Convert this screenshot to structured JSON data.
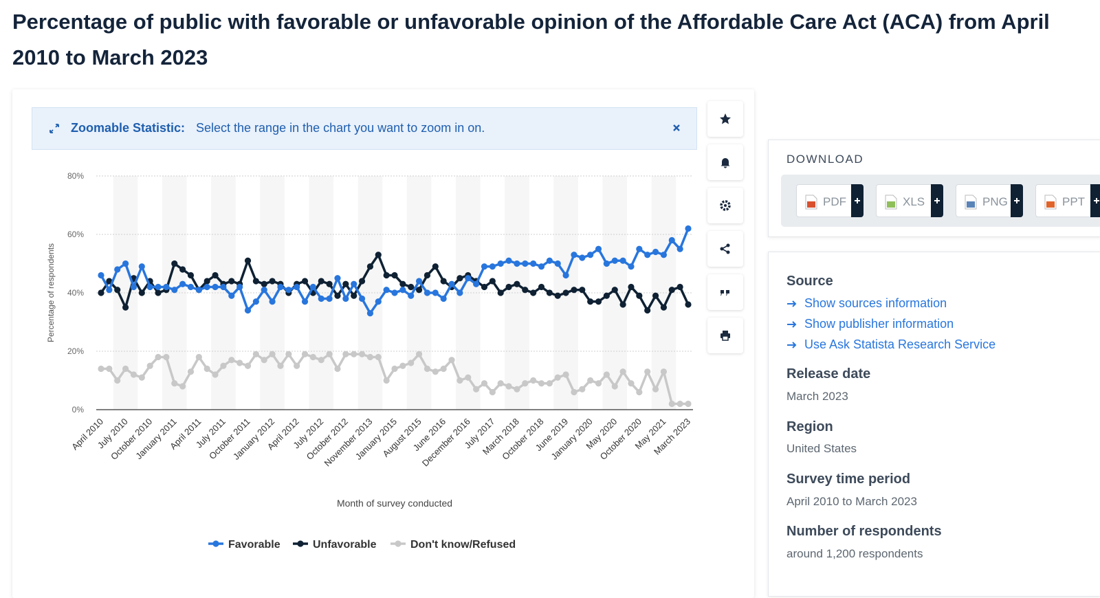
{
  "title": "Percentage of public with favorable or unfavorable opinion of the Affordable Care Act (ACA) from April 2010 to March 2023",
  "zoom_banner": {
    "label": "Zoomable Statistic:",
    "text": "Select the range in the chart you want to zoom in on."
  },
  "chart_data": {
    "type": "line",
    "y_axis_label": "Percentage of respondents",
    "x_axis_label": "Month of survey conducted",
    "categories": [
      "April 2010",
      null,
      null,
      "July 2010",
      null,
      null,
      "October 2010",
      null,
      null,
      "January 2011",
      null,
      null,
      "April 2011",
      null,
      null,
      "July 2011",
      null,
      null,
      "October 2011",
      null,
      null,
      "January 2012",
      null,
      null,
      "April 2012",
      null,
      null,
      "July 2012",
      null,
      null,
      "October 2012",
      null,
      null,
      "November 2013",
      null,
      null,
      "January 2015",
      null,
      null,
      "August 2015",
      null,
      null,
      "June 2016",
      null,
      null,
      "December 2016",
      null,
      null,
      "July 2017",
      null,
      null,
      "March 2018",
      null,
      null,
      "October 2018",
      null,
      null,
      "June 2019",
      null,
      null,
      "January 2020",
      null,
      null,
      "May 2020",
      null,
      null,
      "October 2020",
      null,
      null,
      "May 2021",
      null,
      null,
      "March 2023"
    ],
    "ylim": [
      0,
      80
    ],
    "yticks": [
      {
        "value": 0,
        "label": "0%"
      },
      {
        "value": 20,
        "label": "20%"
      },
      {
        "value": 40,
        "label": "40%"
      },
      {
        "value": 60,
        "label": "60%"
      },
      {
        "value": 80,
        "label": "80%"
      }
    ],
    "grid": true,
    "legend": "bottom",
    "series": [
      {
        "name": "Favorable",
        "color": "#2876dd",
        "values": [
          46,
          41,
          48,
          50,
          42,
          49,
          42,
          42,
          42,
          41,
          43,
          42,
          41,
          42,
          42,
          42,
          39,
          42,
          34,
          37,
          41,
          37,
          42,
          41,
          42,
          37,
          42,
          38,
          38,
          45,
          38,
          43,
          38,
          33,
          37,
          41,
          40,
          41,
          39,
          44,
          40,
          40,
          38,
          43,
          40,
          45,
          43,
          49,
          49,
          50,
          51,
          50,
          50,
          50,
          49,
          51,
          50,
          46,
          53,
          52,
          53,
          55,
          50,
          51,
          51,
          49,
          55,
          53,
          54,
          53,
          58,
          55,
          62
        ]
      },
      {
        "name": "Unfavorable",
        "color": "#0f2133",
        "values": [
          40,
          44,
          41,
          35,
          45,
          40,
          44,
          40,
          41,
          50,
          48,
          46,
          41,
          44,
          46,
          43,
          44,
          43,
          51,
          44,
          43,
          44,
          43,
          40,
          43,
          44,
          40,
          44,
          43,
          39,
          43,
          39,
          44,
          49,
          53,
          46,
          46,
          43,
          42,
          41,
          46,
          49,
          44,
          42,
          45,
          46,
          44,
          42,
          44,
          40,
          42,
          43,
          41,
          40,
          42,
          40,
          39,
          40,
          41,
          41,
          37,
          37,
          39,
          41,
          36,
          42,
          39,
          34,
          39,
          35,
          41,
          42,
          36
        ]
      },
      {
        "name": "Don't know/Refused",
        "color": "#c8c8c8",
        "values": [
          14,
          14,
          10,
          14,
          12,
          11,
          15,
          18,
          18,
          9,
          8,
          13,
          18,
          14,
          12,
          15,
          17,
          16,
          15,
          19,
          17,
          19,
          15,
          19,
          15,
          19,
          18,
          17,
          19,
          14,
          19,
          19,
          19,
          18,
          18,
          10,
          14,
          15,
          16,
          19,
          14,
          13,
          14,
          17,
          10,
          11,
          7,
          9,
          6,
          9,
          8,
          7,
          9,
          10,
          9,
          9,
          11,
          12,
          6,
          7,
          10,
          9,
          12,
          8,
          13,
          9,
          6,
          13,
          7,
          13,
          2,
          2,
          2
        ]
      }
    ]
  },
  "download": {
    "heading": "DOWNLOAD",
    "formats": [
      "PDF",
      "XLS",
      "PNG",
      "PPT"
    ]
  },
  "details": {
    "source": {
      "heading": "Source",
      "links": [
        "Show sources information",
        "Show publisher information",
        "Use Ask Statista Research Service"
      ]
    },
    "release_date": {
      "heading": "Release date",
      "value": "March 2023"
    },
    "region": {
      "heading": "Region",
      "value": "United States"
    },
    "survey_time_period": {
      "heading": "Survey time period",
      "value": "April 2010 to March 2023"
    },
    "number_of_respondents": {
      "heading": "Number of respondents",
      "value": "around 1,200 respondents"
    }
  }
}
